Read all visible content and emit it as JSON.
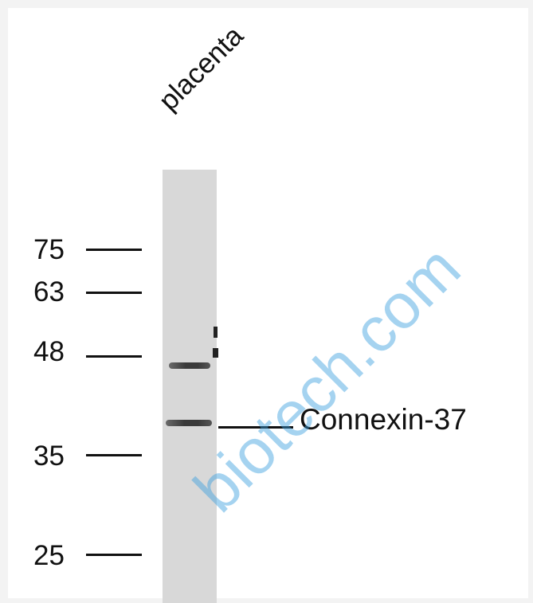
{
  "lane": {
    "label": "placenta"
  },
  "markers": [
    {
      "label": "75"
    },
    {
      "label": "63"
    },
    {
      "label": "48"
    },
    {
      "label": "35"
    },
    {
      "label": "25"
    }
  ],
  "target": {
    "label": "Connexin-37"
  },
  "watermark": {
    "text": "biotech.com"
  },
  "colors": {
    "lane_background": "#d8d8d8",
    "band": "#3a3a3a",
    "watermark": "#3aa0e0"
  }
}
